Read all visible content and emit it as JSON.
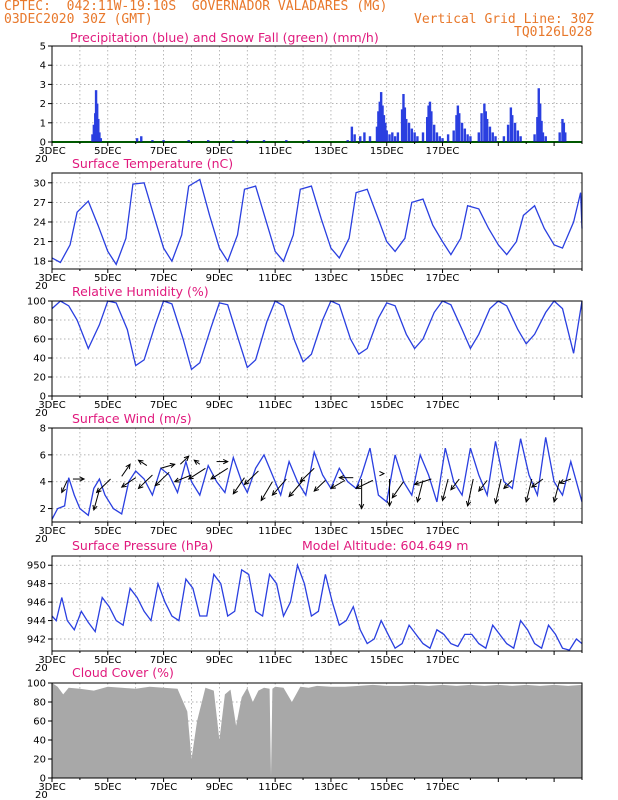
{
  "header": {
    "line1": "CPTEC:  042:11W-19:10S  GOVERNADOR VALADARES (MG)",
    "line2_left": "03DEC2020 30Z (GMT)",
    "line2_right": "Vertical Grid Line: 30Z",
    "code": "TQ0126L028"
  },
  "x_tick_labels": [
    "3DEC",
    "5DEC",
    "7DEC",
    "9DEC",
    "11DEC",
    "13DEC",
    "15DEC",
    "17DEC"
  ],
  "year_fragment": "20",
  "panels": [
    {
      "key": "precip",
      "title": "Precipitation (blue) and Snow Fall (green) (mm/h)",
      "extra": ""
    },
    {
      "key": "temp",
      "title": "Surface Temperature (nC)",
      "extra": ""
    },
    {
      "key": "rh",
      "title": "Relative Humidity (%)",
      "extra": ""
    },
    {
      "key": "wind",
      "title": "Surface Wind (m/s)",
      "extra": ""
    },
    {
      "key": "pres",
      "title": "Surface Pressure (hPa)",
      "extra": "Model Altitude: 604.649 m"
    },
    {
      "key": "cloud",
      "title": "Cloud Cover (%)",
      "extra": ""
    }
  ],
  "colors": {
    "line": "#2a3fe0",
    "bar": "#2a3fe0",
    "snow": "#00b000",
    "cloud": "#a8a8a8",
    "arrow": "#000000"
  },
  "chart_data": [
    {
      "type": "bar",
      "title": "Precipitation (blue) and Snow Fall (green) (mm/h)",
      "x_unit": "days since 3DEC 00Z",
      "ylim": [
        0,
        5
      ],
      "yticks": [
        0,
        1,
        2,
        3,
        4,
        5
      ],
      "bars": [
        [
          1.45,
          0.4
        ],
        [
          1.5,
          0.9
        ],
        [
          1.55,
          1.5
        ],
        [
          1.58,
          2.7
        ],
        [
          1.62,
          2.0
        ],
        [
          1.66,
          1.2
        ],
        [
          1.7,
          0.5
        ],
        [
          1.75,
          0.2
        ],
        [
          3.05,
          0.2
        ],
        [
          3.2,
          0.3
        ],
        [
          3.6,
          0.1
        ],
        [
          4.0,
          0.1
        ],
        [
          4.9,
          0.1
        ],
        [
          5.6,
          0.1
        ],
        [
          6.5,
          0.1
        ],
        [
          7.0,
          0.1
        ],
        [
          7.6,
          0.1
        ],
        [
          8.4,
          0.1
        ],
        [
          9.2,
          0.1
        ],
        [
          10.6,
          0.1
        ],
        [
          10.75,
          0.8
        ],
        [
          10.85,
          0.4
        ],
        [
          11.05,
          0.3
        ],
        [
          11.2,
          0.5
        ],
        [
          11.4,
          0.3
        ],
        [
          11.65,
          0.8
        ],
        [
          11.7,
          1.6
        ],
        [
          11.75,
          2.1
        ],
        [
          11.8,
          2.6
        ],
        [
          11.85,
          1.9
        ],
        [
          11.9,
          1.4
        ],
        [
          11.95,
          1.0
        ],
        [
          12.0,
          0.6
        ],
        [
          12.1,
          0.4
        ],
        [
          12.2,
          0.5
        ],
        [
          12.3,
          0.3
        ],
        [
          12.4,
          0.5
        ],
        [
          12.55,
          1.7
        ],
        [
          12.6,
          2.5
        ],
        [
          12.65,
          1.8
        ],
        [
          12.7,
          1.2
        ],
        [
          12.8,
          1.0
        ],
        [
          12.9,
          0.7
        ],
        [
          13.0,
          0.5
        ],
        [
          13.1,
          0.3
        ],
        [
          13.3,
          0.5
        ],
        [
          13.45,
          1.3
        ],
        [
          13.5,
          1.9
        ],
        [
          13.55,
          2.1
        ],
        [
          13.6,
          1.6
        ],
        [
          13.7,
          0.9
        ],
        [
          13.8,
          0.5
        ],
        [
          13.9,
          0.3
        ],
        [
          14.0,
          0.2
        ],
        [
          14.2,
          0.4
        ],
        [
          14.4,
          0.6
        ],
        [
          14.5,
          1.4
        ],
        [
          14.55,
          1.9
        ],
        [
          14.6,
          1.5
        ],
        [
          14.7,
          1.0
        ],
        [
          14.8,
          0.7
        ],
        [
          14.9,
          0.4
        ],
        [
          15.0,
          0.3
        ],
        [
          15.3,
          0.5
        ],
        [
          15.4,
          1.5
        ],
        [
          15.5,
          2.0
        ],
        [
          15.55,
          1.6
        ],
        [
          15.6,
          1.2
        ],
        [
          15.7,
          0.8
        ],
        [
          15.8,
          0.5
        ],
        [
          15.9,
          0.3
        ],
        [
          16.2,
          0.3
        ],
        [
          16.35,
          0.9
        ],
        [
          16.45,
          1.8
        ],
        [
          16.5,
          1.4
        ],
        [
          16.6,
          1.0
        ],
        [
          16.7,
          0.6
        ],
        [
          16.8,
          0.3
        ],
        [
          17.3,
          0.4
        ],
        [
          17.4,
          1.3
        ],
        [
          17.45,
          2.8
        ],
        [
          17.5,
          2.0
        ],
        [
          17.55,
          1.1
        ],
        [
          17.6,
          0.5
        ],
        [
          17.7,
          0.3
        ],
        [
          18.2,
          0.5
        ],
        [
          18.3,
          1.2
        ],
        [
          18.35,
          1.0
        ],
        [
          18.4,
          0.5
        ]
      ]
    },
    {
      "type": "line",
      "title": "Surface Temperature (nC)",
      "x_unit": "days since 3DEC 00Z",
      "ylim": [
        16.8,
        31.5
      ],
      "yticks": [
        18,
        21,
        24,
        27,
        30
      ],
      "x": [
        0,
        0.3,
        0.65,
        0.9,
        1.3,
        1.65,
        2.0,
        2.3,
        2.65,
        2.9,
        3.3,
        3.65,
        4.0,
        4.3,
        4.65,
        4.9,
        5.3,
        5.65,
        6.0,
        6.3,
        6.65,
        6.9,
        7.3,
        7.65,
        8.0,
        8.3,
        8.65,
        8.9,
        9.3,
        9.65,
        10.0,
        10.3,
        10.65,
        10.9,
        11.3,
        11.65,
        12.0,
        12.3,
        12.65,
        12.9,
        13.3,
        13.65,
        14.0,
        14.3,
        14.65,
        14.9,
        15.3,
        15.65,
        16.0,
        16.3,
        16.65,
        16.9,
        17.3,
        17.65,
        18.0,
        18.3,
        18.7,
        18.95,
        19.0
      ],
      "y": [
        18.5,
        17.8,
        20.5,
        25.5,
        27.2,
        23.5,
        19.5,
        17.5,
        21.5,
        29.8,
        30.0,
        25.0,
        20.0,
        18.0,
        22.0,
        29.5,
        30.5,
        25.0,
        20.0,
        18.0,
        22.0,
        29.0,
        29.5,
        24.5,
        19.5,
        18.0,
        22.0,
        29.0,
        29.5,
        24.5,
        20.0,
        18.5,
        21.5,
        28.5,
        29.0,
        25.0,
        21.0,
        19.5,
        21.5,
        27.0,
        27.5,
        23.5,
        21.0,
        19.0,
        21.5,
        26.5,
        26.0,
        23.0,
        20.5,
        19.0,
        21.0,
        25.0,
        26.5,
        23.0,
        20.5,
        20.0,
        24.0,
        28.5,
        23.0
      ]
    },
    {
      "type": "line",
      "title": "Relative Humidity (%)",
      "x_unit": "days since 3DEC 00Z",
      "ylim": [
        0,
        100
      ],
      "yticks": [
        0,
        20,
        40,
        60,
        80,
        100
      ],
      "x": [
        0,
        0.3,
        0.6,
        0.9,
        1.3,
        1.7,
        2.0,
        2.3,
        2.7,
        3.0,
        3.3,
        3.7,
        4.0,
        4.3,
        4.7,
        5.0,
        5.3,
        5.7,
        6.0,
        6.3,
        6.7,
        7.0,
        7.3,
        7.7,
        8.0,
        8.3,
        8.7,
        9.0,
        9.3,
        9.7,
        10.0,
        10.3,
        10.7,
        11.0,
        11.3,
        11.7,
        12.0,
        12.3,
        12.7,
        13.0,
        13.3,
        13.7,
        14.0,
        14.3,
        14.7,
        15.0,
        15.3,
        15.7,
        16.0,
        16.3,
        16.7,
        17.0,
        17.3,
        17.7,
        18.0,
        18.3,
        18.7,
        19.0
      ],
      "y": [
        92,
        100,
        95,
        80,
        50,
        75,
        100,
        98,
        70,
        32,
        38,
        75,
        100,
        97,
        60,
        28,
        35,
        72,
        98,
        96,
        58,
        30,
        38,
        78,
        100,
        95,
        58,
        36,
        44,
        80,
        100,
        96,
        60,
        44,
        50,
        82,
        98,
        95,
        65,
        50,
        60,
        88,
        100,
        96,
        70,
        50,
        65,
        92,
        100,
        95,
        70,
        55,
        65,
        88,
        100,
        92,
        45,
        100
      ]
    },
    {
      "type": "line",
      "title": "Surface Wind (m/s)",
      "x_unit": "days since 3DEC 00Z",
      "ylim": [
        1,
        8
      ],
      "yticks": [
        2,
        4,
        6,
        8
      ],
      "x": [
        0,
        0.2,
        0.45,
        0.6,
        0.8,
        1.0,
        1.3,
        1.5,
        1.7,
        1.9,
        2.2,
        2.5,
        2.75,
        3.0,
        3.3,
        3.6,
        3.9,
        4.2,
        4.5,
        4.8,
        5.0,
        5.3,
        5.6,
        5.9,
        6.2,
        6.5,
        6.8,
        7.0,
        7.3,
        7.6,
        7.9,
        8.2,
        8.5,
        8.8,
        9.1,
        9.4,
        9.7,
        10.0,
        10.3,
        10.6,
        10.9,
        11.1,
        11.4,
        11.7,
        12.0,
        12.3,
        12.6,
        12.9,
        13.2,
        13.5,
        13.8,
        14.1,
        14.4,
        14.7,
        15.0,
        15.3,
        15.6,
        15.9,
        16.2,
        16.5,
        16.8,
        17.1,
        17.4,
        17.7,
        18.0,
        18.3,
        18.6,
        19.0
      ],
      "y": [
        1.2,
        2.0,
        2.2,
        4.3,
        3.0,
        2.0,
        1.5,
        3.5,
        4.2,
        3.0,
        2.0,
        1.6,
        4.0,
        4.8,
        4.2,
        3.0,
        5.0,
        4.5,
        3.2,
        5.5,
        4.0,
        3.0,
        5.2,
        4.0,
        3.2,
        5.8,
        4.0,
        3.2,
        5.0,
        6.0,
        4.5,
        3.0,
        5.5,
        4.0,
        3.0,
        6.2,
        4.5,
        3.5,
        5.0,
        4.0,
        3.5,
        4.5,
        6.5,
        3.0,
        2.5,
        6.0,
        4.0,
        3.0,
        6.0,
        4.5,
        2.5,
        6.5,
        4.0,
        3.0,
        6.5,
        4.5,
        3.0,
        7.0,
        4.0,
        3.5,
        7.2,
        4.5,
        3.0,
        7.3,
        4.0,
        3.0,
        5.5,
        2.5
      ]
    },
    {
      "type": "line",
      "title": "Surface Pressure (hPa)",
      "subtitle": "Model Altitude: 604.649 m",
      "x_unit": "days since 3DEC 00Z",
      "ylim": [
        940.7,
        951
      ],
      "yticks": [
        942,
        944,
        946,
        948,
        950
      ],
      "x": [
        0,
        0.15,
        0.35,
        0.55,
        0.8,
        1.05,
        1.3,
        1.55,
        1.8,
        2.05,
        2.3,
        2.55,
        2.8,
        3.05,
        3.3,
        3.55,
        3.8,
        4.05,
        4.3,
        4.55,
        4.8,
        5.05,
        5.3,
        5.55,
        5.8,
        6.05,
        6.3,
        6.55,
        6.8,
        7.05,
        7.3,
        7.55,
        7.8,
        8.05,
        8.3,
        8.55,
        8.8,
        9.05,
        9.3,
        9.55,
        9.8,
        10.05,
        10.3,
        10.55,
        10.8,
        11.05,
        11.3,
        11.55,
        11.8,
        12.05,
        12.3,
        12.55,
        12.8,
        13.05,
        13.3,
        13.55,
        13.8,
        14.05,
        14.3,
        14.55,
        14.8,
        15.05,
        15.3,
        15.55,
        15.8,
        16.05,
        16.3,
        16.55,
        16.8,
        17.05,
        17.3,
        17.55,
        17.8,
        18.05,
        18.3,
        18.55,
        18.8,
        19.0
      ],
      "y": [
        944.5,
        944.0,
        946.5,
        944.0,
        943.0,
        945.0,
        943.8,
        942.8,
        946.5,
        945.5,
        944.0,
        943.5,
        947.5,
        946.5,
        945.0,
        944.0,
        948.0,
        946.0,
        944.5,
        944.0,
        948.5,
        947.5,
        944.5,
        944.5,
        949.0,
        948.0,
        944.5,
        945.0,
        949.5,
        949.0,
        945.0,
        944.5,
        949.0,
        948.0,
        944.5,
        946.0,
        950.0,
        948.0,
        944.5,
        945.0,
        949.0,
        946.0,
        943.5,
        944.0,
        945.5,
        943.0,
        941.5,
        942.0,
        944.0,
        942.5,
        941.0,
        941.5,
        943.5,
        942.5,
        941.5,
        941.0,
        943.0,
        942.5,
        941.5,
        941.2,
        942.5,
        942.5,
        941.5,
        941.0,
        943.5,
        942.5,
        941.5,
        941.0,
        944.0,
        943.0,
        941.5,
        941.0,
        943.5,
        942.5,
        941.0,
        940.8,
        942.0,
        941.5
      ]
    },
    {
      "type": "area",
      "title": "Cloud Cover (%)",
      "x_unit": "days since 3DEC 00Z",
      "ylim": [
        0,
        100
      ],
      "yticks": [
        0,
        20,
        40,
        60,
        80,
        100
      ],
      "x": [
        0,
        0.2,
        0.4,
        0.6,
        1.0,
        1.5,
        2.0,
        2.5,
        3.0,
        3.5,
        4.0,
        4.5,
        4.85,
        5.0,
        5.2,
        5.5,
        5.8,
        6.0,
        6.2,
        6.4,
        6.6,
        6.8,
        7.0,
        7.2,
        7.4,
        7.6,
        7.8,
        7.85,
        7.9,
        8.0,
        8.3,
        8.6,
        8.9,
        9.2,
        9.5,
        10.0,
        10.5,
        11.0,
        11.5,
        12.0,
        12.5,
        13.0,
        13.5,
        14.0,
        14.5,
        15.0,
        15.5,
        16.0,
        16.5,
        17.0,
        17.5,
        18.0,
        18.5,
        19.0
      ],
      "y": [
        100,
        96,
        88,
        95,
        94,
        92,
        96,
        95,
        94,
        96,
        95,
        94,
        70,
        20,
        60,
        95,
        92,
        40,
        88,
        93,
        55,
        85,
        95,
        80,
        92,
        95,
        94,
        2,
        94,
        96,
        95,
        80,
        96,
        95,
        97,
        96,
        96,
        97,
        98,
        97,
        97,
        98,
        97,
        98,
        97,
        98,
        97,
        98,
        97,
        98,
        97,
        98,
        97,
        98
      ]
    },
    {
      "type": "vector",
      "title": "Surface Wind direction arrows",
      "x_unit": "days since 3DEC 00Z",
      "note": "arrow tail at (x, y); arrow direction given as [dx_days, dy_ms] in data units",
      "arrows": [
        [
          0.55,
          4.1,
          -0.2,
          -0.9
        ],
        [
          0.75,
          4.2,
          0.4,
          0.0
        ],
        [
          1.7,
          3.4,
          -0.2,
          -1.5
        ],
        [
          2.1,
          4.2,
          -0.5,
          -1.0
        ],
        [
          2.5,
          4.4,
          0.3,
          0.9
        ],
        [
          3.0,
          4.3,
          -0.5,
          -0.7
        ],
        [
          3.4,
          5.2,
          -0.3,
          0.4
        ],
        [
          3.6,
          4.5,
          -0.5,
          -1.0
        ],
        [
          3.9,
          5.0,
          0.5,
          0.3
        ],
        [
          4.2,
          4.7,
          -0.5,
          -1.0
        ],
        [
          4.6,
          5.3,
          0.3,
          0.6
        ],
        [
          5.0,
          4.5,
          -0.6,
          -0.5
        ],
        [
          5.3,
          5.3,
          -0.2,
          0.3
        ],
        [
          5.5,
          5.0,
          -0.6,
          -0.8
        ],
        [
          5.9,
          5.5,
          0.4,
          0.0
        ],
        [
          6.3,
          5.0,
          -0.6,
          -0.8
        ],
        [
          6.9,
          4.3,
          -0.4,
          -1.2
        ],
        [
          7.4,
          4.8,
          -0.5,
          -1.0
        ],
        [
          7.9,
          4.0,
          -0.4,
          -1.4
        ],
        [
          8.4,
          4.2,
          -0.5,
          -1.2
        ],
        [
          9.0,
          4.1,
          -0.5,
          -1.2
        ],
        [
          9.4,
          5.0,
          -0.5,
          -1.0
        ],
        [
          9.8,
          4.1,
          -0.4,
          -0.8
        ],
        [
          10.5,
          4.1,
          -0.5,
          -0.6
        ],
        [
          10.8,
          4.3,
          -0.5,
          0.0
        ],
        [
          11.1,
          4.2,
          0.0,
          -2.2
        ],
        [
          11.5,
          4.1,
          -0.6,
          -0.6
        ],
        [
          11.9,
          4.6,
          0.0,
          0.0
        ],
        [
          12.1,
          4.2,
          0.0,
          -2.0
        ],
        [
          12.6,
          4.0,
          -0.4,
          -1.2
        ],
        [
          13.3,
          4.1,
          -0.2,
          -1.6
        ],
        [
          13.6,
          4.2,
          -0.6,
          -0.4
        ],
        [
          14.2,
          4.2,
          -0.2,
          -1.6
        ],
        [
          14.6,
          4.2,
          -0.3,
          -0.8
        ],
        [
          15.1,
          4.2,
          -0.2,
          -2.0
        ],
        [
          15.6,
          4.1,
          -0.3,
          -0.8
        ],
        [
          16.1,
          4.2,
          -0.2,
          -1.8
        ],
        [
          16.5,
          4.1,
          -0.3,
          -0.6
        ],
        [
          17.2,
          4.2,
          -0.2,
          -1.7
        ],
        [
          17.6,
          4.2,
          -0.4,
          -0.6
        ],
        [
          18.2,
          4.1,
          -0.2,
          -1.6
        ],
        [
          18.6,
          4.2,
          -0.4,
          -0.3
        ]
      ]
    }
  ]
}
